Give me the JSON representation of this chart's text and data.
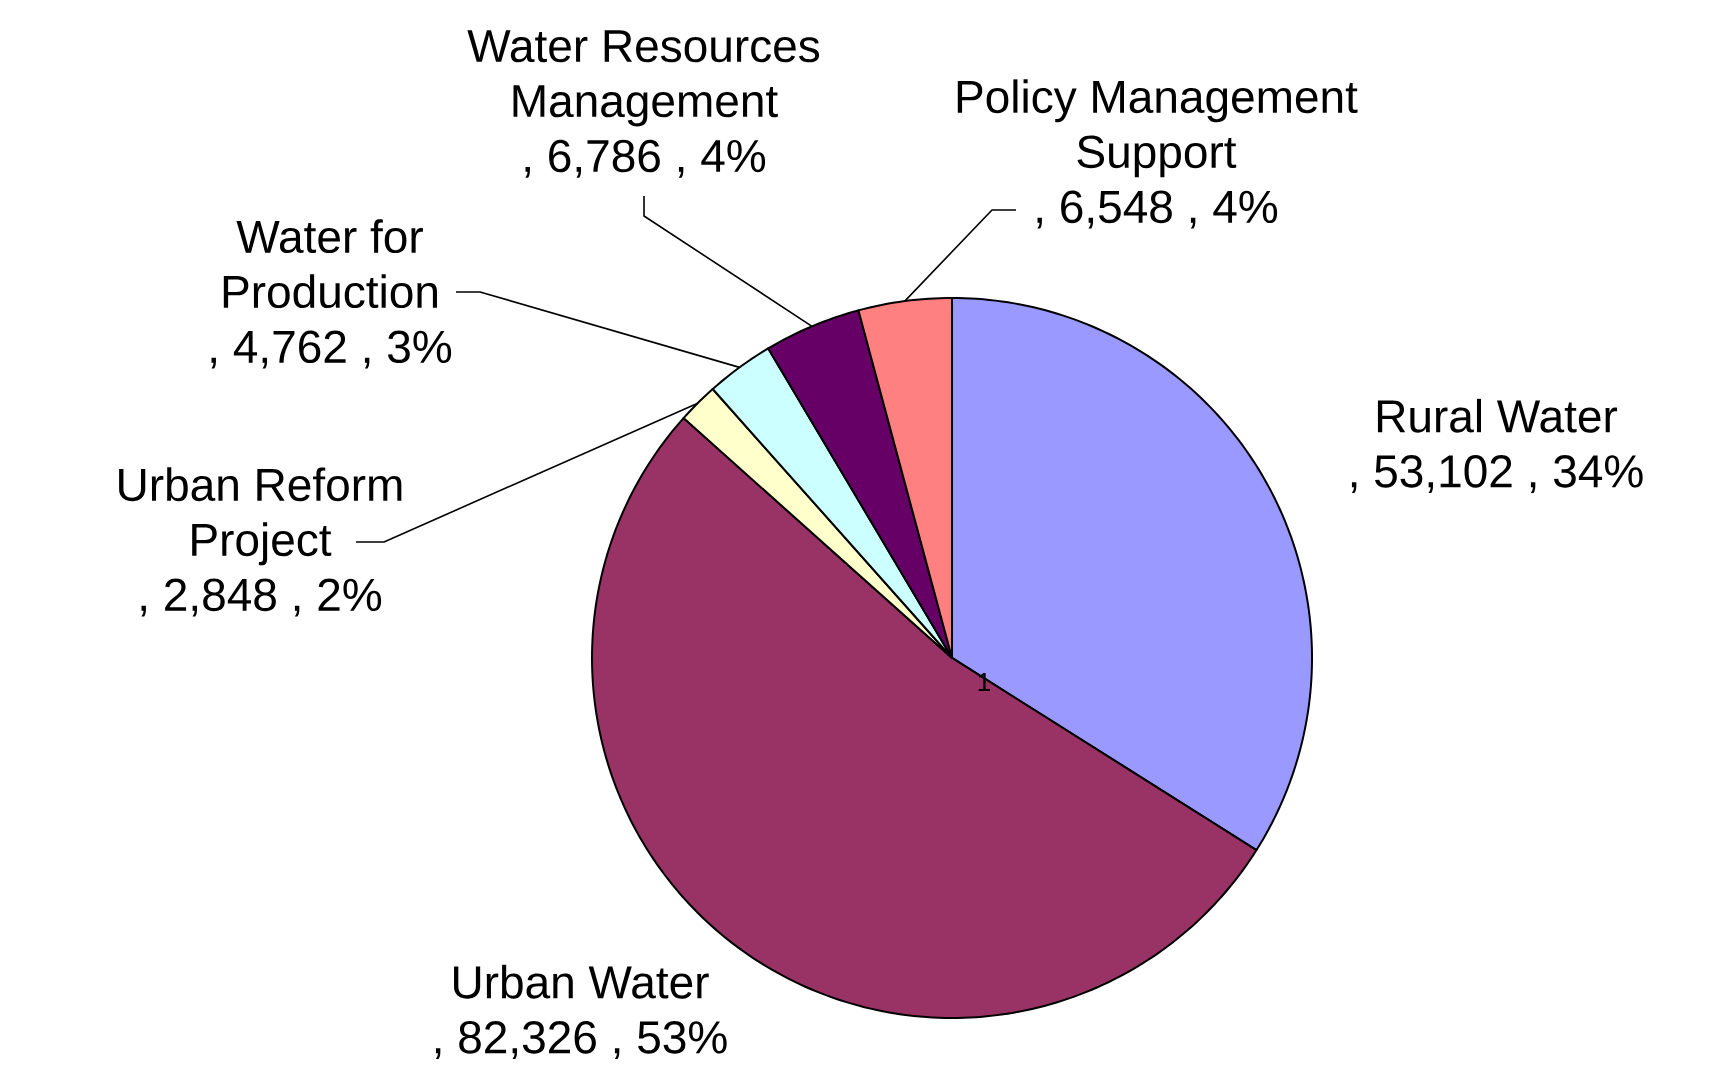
{
  "chart_data": {
    "type": "pie",
    "categories": [
      "Rural Water",
      "Urban Water",
      "Urban Reform Project",
      "Water for Production",
      "Water Resources Management",
      "Policy Management Support"
    ],
    "values": [
      53102,
      82326,
      2848,
      4762,
      6786,
      6548
    ],
    "colors": [
      "#9999ff",
      "#993366",
      "#ffffcc",
      "#ccffff",
      "#660066",
      "#ff8080"
    ],
    "value_labels": [
      ", 53,102 , 34%",
      ", 82,326 , 53%",
      ", 2,848 , 2%",
      ", 4,762 , 3%",
      ", 6,786 , 4%",
      ", 6,548 , 4%"
    ],
    "annotations": [
      "1"
    ]
  }
}
